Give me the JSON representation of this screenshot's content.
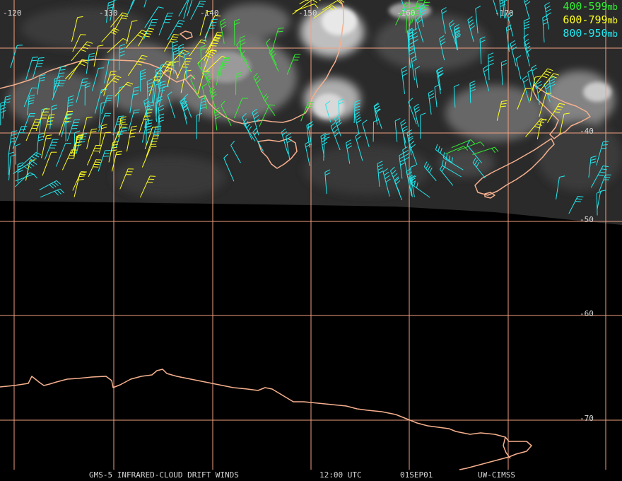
{
  "colors": {
    "grid": "#f0a080",
    "coast": "#f6b08e",
    "band_400_599": "#33ee33",
    "band_600_799": "#ffff22",
    "band_800_950": "#22e8ee"
  },
  "longitude_labels": [
    "-120",
    "-130",
    "-140",
    "-150",
    "-160",
    "-170"
  ],
  "latitude_labels": [
    "-40",
    "-50",
    "-60",
    "-70"
  ],
  "legend": [
    {
      "range": "400-599",
      "unit": "mb",
      "color": "#33ee33"
    },
    {
      "range": "600-799",
      "unit": "mb",
      "color": "#ffff22"
    },
    {
      "range": "800-950",
      "unit": "mb",
      "color": "#22e8ee"
    }
  ],
  "footer": {
    "product": "GMS-5 INFRARED-CLOUD DRIFT WINDS",
    "time": "12:00 UTC",
    "date": "01SEP01",
    "source": "UW-CIMSS"
  }
}
